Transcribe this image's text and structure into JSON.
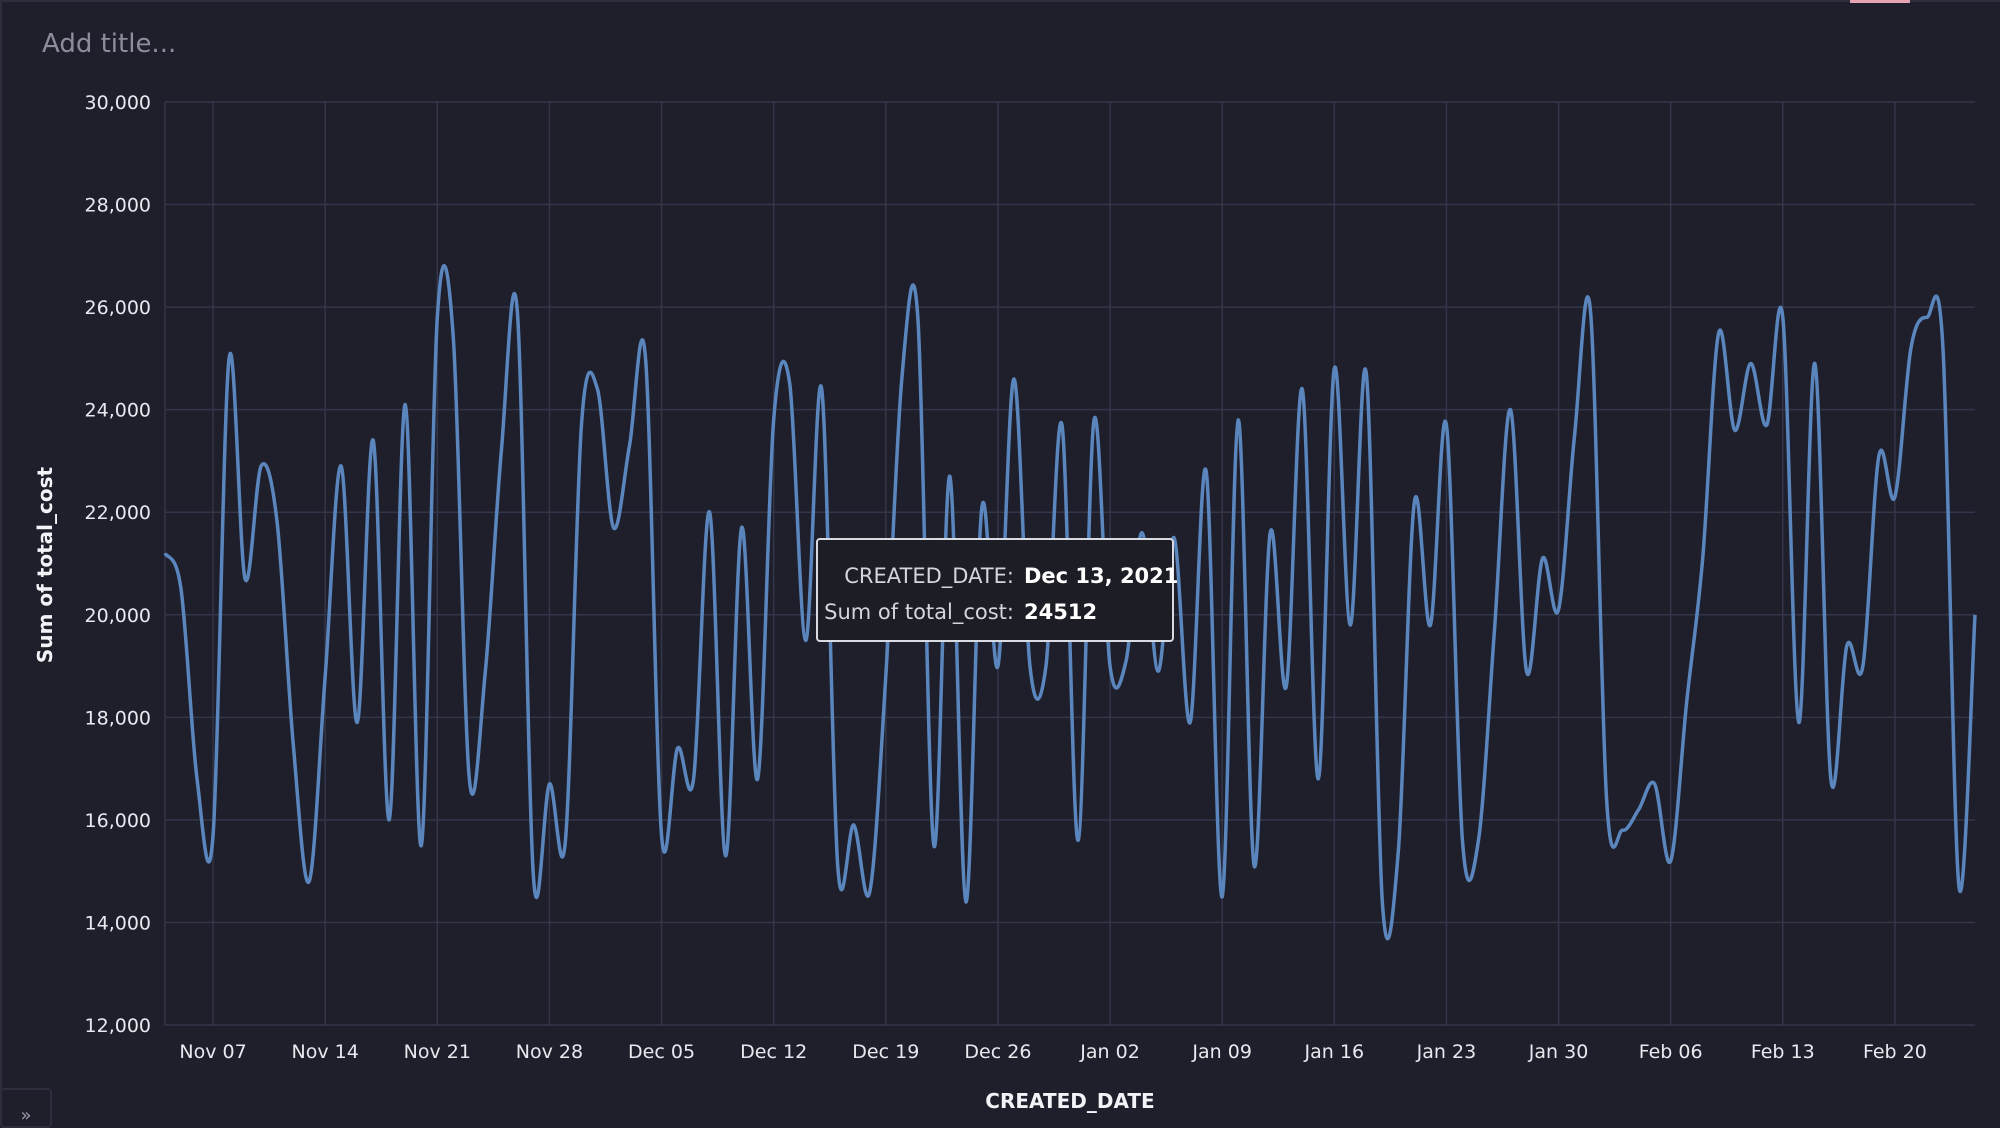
{
  "title_placeholder": "Add title...",
  "colors": {
    "background": "#1e1f2a",
    "grid": "#33364a",
    "line": "#5b86bd",
    "accent": "#e3a3b3"
  },
  "tooltip": {
    "date_key": "CREATED_DATE:",
    "date_value": "Dec 13, 2021",
    "cost_key": "Sum of total_cost:",
    "cost_value": "24512"
  },
  "collapse_icon": "double-chevron-icon",
  "chart_data": {
    "type": "line",
    "title": "",
    "xlabel": "CREATED_DATE",
    "ylabel": "Sum of total_cost",
    "ylim": [
      12000,
      30000
    ],
    "yticks": [
      "12,000",
      "14,000",
      "16,000",
      "18,000",
      "20,000",
      "22,000",
      "24,000",
      "26,000",
      "28,000",
      "30,000"
    ],
    "xticks": [
      "Nov 07",
      "Nov 14",
      "Nov 21",
      "Nov 28",
      "Dec 05",
      "Dec 12",
      "Dec 19",
      "Dec 26",
      "Jan 02",
      "Jan 09",
      "Jan 16",
      "Jan 23",
      "Jan 30",
      "Feb 06",
      "Feb 13",
      "Feb 20"
    ],
    "xlim": [
      "2021-11-04",
      "2022-02-25"
    ],
    "grid": true,
    "series": [
      {
        "values": [
          [
            "2021-11-04",
            21200
          ],
          [
            "2021-11-05",
            20500
          ],
          [
            "2021-11-06",
            16800
          ],
          [
            "2021-11-07",
            15700
          ],
          [
            "2021-11-08",
            25000
          ],
          [
            "2021-11-09",
            20700
          ],
          [
            "2021-11-10",
            22900
          ],
          [
            "2021-11-11",
            21800
          ],
          [
            "2021-11-12",
            17500
          ],
          [
            "2021-11-13",
            14800
          ],
          [
            "2021-11-14",
            18800
          ],
          [
            "2021-11-15",
            22900
          ],
          [
            "2021-11-16",
            17900
          ],
          [
            "2021-11-17",
            23400
          ],
          [
            "2021-11-18",
            16000
          ],
          [
            "2021-11-19",
            24100
          ],
          [
            "2021-11-20",
            15500
          ],
          [
            "2021-11-21",
            25800
          ],
          [
            "2021-11-22",
            25400
          ],
          [
            "2021-11-23",
            16800
          ],
          [
            "2021-11-24",
            18900
          ],
          [
            "2021-11-25",
            23200
          ],
          [
            "2021-11-26",
            25900
          ],
          [
            "2021-11-27",
            14900
          ],
          [
            "2021-11-28",
            16700
          ],
          [
            "2021-11-29",
            15600
          ],
          [
            "2021-11-30",
            23700
          ],
          [
            "2021-12-01",
            24400
          ],
          [
            "2021-12-02",
            21700
          ],
          [
            "2021-12-03",
            23300
          ],
          [
            "2021-12-04",
            25000
          ],
          [
            "2021-12-05",
            15700
          ],
          [
            "2021-12-06",
            17400
          ],
          [
            "2021-12-07",
            16800
          ],
          [
            "2021-12-08",
            22000
          ],
          [
            "2021-12-09",
            15300
          ],
          [
            "2021-12-10",
            21700
          ],
          [
            "2021-12-11",
            16800
          ],
          [
            "2021-12-12",
            23800
          ],
          [
            "2021-12-13",
            24512
          ],
          [
            "2021-12-14",
            19500
          ],
          [
            "2021-12-15",
            24400
          ],
          [
            "2021-12-16",
            15100
          ],
          [
            "2021-12-17",
            15900
          ],
          [
            "2021-12-18",
            14600
          ],
          [
            "2021-12-19",
            18800
          ],
          [
            "2021-12-20",
            24600
          ],
          [
            "2021-12-21",
            25800
          ],
          [
            "2021-12-22",
            15500
          ],
          [
            "2021-12-23",
            22700
          ],
          [
            "2021-12-24",
            14400
          ],
          [
            "2021-12-25",
            22100
          ],
          [
            "2021-12-26",
            19000
          ],
          [
            "2021-12-27",
            24600
          ],
          [
            "2021-12-28",
            19000
          ],
          [
            "2021-12-29",
            19000
          ],
          [
            "2021-12-30",
            23700
          ],
          [
            "2021-12-31",
            15600
          ],
          [
            "2022-01-01",
            23800
          ],
          [
            "2022-01-02",
            19000
          ],
          [
            "2022-01-03",
            19100
          ],
          [
            "2022-01-04",
            21600
          ],
          [
            "2022-01-05",
            18900
          ],
          [
            "2022-01-06",
            21500
          ],
          [
            "2022-01-07",
            17900
          ],
          [
            "2022-01-08",
            22800
          ],
          [
            "2022-01-09",
            14500
          ],
          [
            "2022-01-10",
            23800
          ],
          [
            "2022-01-11",
            15100
          ],
          [
            "2022-01-12",
            21600
          ],
          [
            "2022-01-13",
            18600
          ],
          [
            "2022-01-14",
            24400
          ],
          [
            "2022-01-15",
            16800
          ],
          [
            "2022-01-16",
            24800
          ],
          [
            "2022-01-17",
            19800
          ],
          [
            "2022-01-18",
            24700
          ],
          [
            "2022-01-19",
            14400
          ],
          [
            "2022-01-20",
            15400
          ],
          [
            "2022-01-21",
            22200
          ],
          [
            "2022-01-22",
            19800
          ],
          [
            "2022-01-23",
            23700
          ],
          [
            "2022-01-24",
            15600
          ],
          [
            "2022-01-25",
            15600
          ],
          [
            "2022-01-26",
            19700
          ],
          [
            "2022-01-27",
            24000
          ],
          [
            "2022-01-28",
            18900
          ],
          [
            "2022-01-29",
            21100
          ],
          [
            "2022-01-30",
            20100
          ],
          [
            "2022-01-31",
            23500
          ],
          [
            "2022-02-01",
            25900
          ],
          [
            "2022-02-02",
            16400
          ],
          [
            "2022-02-03",
            15800
          ],
          [
            "2022-02-04",
            16200
          ],
          [
            "2022-02-05",
            16700
          ],
          [
            "2022-02-06",
            15200
          ],
          [
            "2022-02-07",
            18300
          ],
          [
            "2022-02-08",
            21100
          ],
          [
            "2022-02-09",
            25500
          ],
          [
            "2022-02-10",
            23600
          ],
          [
            "2022-02-11",
            24900
          ],
          [
            "2022-02-12",
            23700
          ],
          [
            "2022-02-13",
            25800
          ],
          [
            "2022-02-14",
            17900
          ],
          [
            "2022-02-15",
            24900
          ],
          [
            "2022-02-16",
            16800
          ],
          [
            "2022-02-17",
            19400
          ],
          [
            "2022-02-18",
            19000
          ],
          [
            "2022-02-19",
            23100
          ],
          [
            "2022-02-20",
            22300
          ],
          [
            "2022-02-21",
            25200
          ],
          [
            "2022-02-22",
            25800
          ],
          [
            "2022-02-23",
            25200
          ],
          [
            "2022-02-24",
            14700
          ],
          [
            "2022-02-25",
            20000
          ]
        ]
      }
    ]
  }
}
